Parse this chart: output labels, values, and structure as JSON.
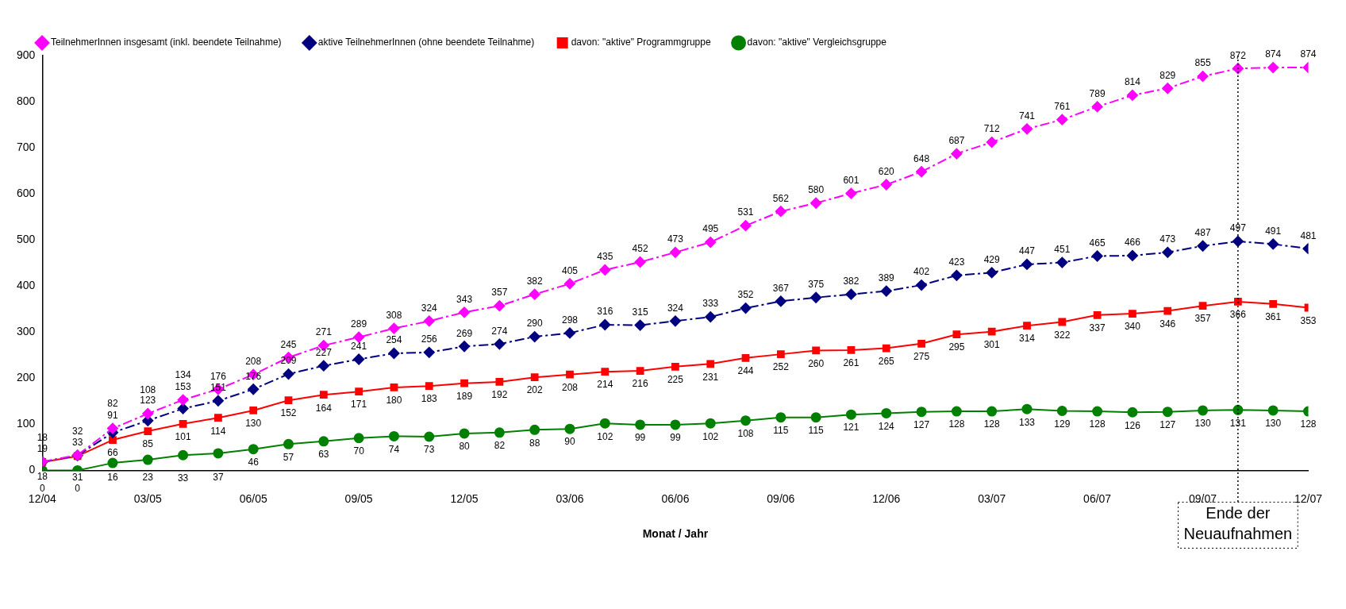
{
  "chart_data": {
    "type": "line",
    "xlabel": "Monat / Jahr",
    "x": [
      "2004-12",
      "2005-01",
      "2005-02",
      "2005-03",
      "2005-04",
      "2005-05",
      "2005-06",
      "2005-07",
      "2005-08",
      "2005-09",
      "2005-10",
      "2005-11",
      "2005-12",
      "2006-01",
      "2006-02",
      "2006-03",
      "2006-04",
      "2006-05",
      "2006-06",
      "2006-07",
      "2006-08",
      "2006-09",
      "2006-10",
      "2006-11",
      "2006-12",
      "2007-01",
      "2007-02",
      "2007-03",
      "2007-04",
      "2007-05",
      "2007-06",
      "2007-07",
      "2007-08",
      "2007-09",
      "2007-10",
      "2007-11",
      "2007-12"
    ],
    "series": [
      {
        "name": "TeilnehmerInnen insgesamt (inkl. beendete Teilnahme)",
        "color": "#ff00ff",
        "marker": "diamond",
        "line_style": "dashed",
        "values": [
          19,
          33,
          91,
          123,
          153,
          176,
          208,
          245,
          271,
          289,
          308,
          324,
          343,
          357,
          382,
          405,
          435,
          452,
          473,
          495,
          531,
          562,
          580,
          601,
          620,
          648,
          687,
          712,
          741,
          761,
          789,
          814,
          829,
          855,
          872,
          874,
          874
        ]
      },
      {
        "name": "aktive TeilnehmerInnen (ohne beendete Teilnahme)",
        "color": "#000080",
        "marker": "diamond",
        "line_style": "dashed",
        "values": [
          18,
          32,
          82,
          108,
          134,
          151,
          176,
          209,
          227,
          241,
          254,
          256,
          269,
          274,
          290,
          298,
          316,
          315,
          324,
          333,
          352,
          367,
          375,
          382,
          389,
          402,
          423,
          429,
          447,
          451,
          465,
          466,
          473,
          487,
          497,
          491,
          481
        ]
      },
      {
        "name": "davon: \"aktive\" Programmgruppe",
        "color": "#ff0000",
        "marker": "square",
        "line_style": "solid",
        "values": [
          18,
          31,
          66,
          85,
          101,
          114,
          130,
          152,
          164,
          171,
          180,
          183,
          189,
          192,
          202,
          208,
          214,
          216,
          225,
          231,
          244,
          252,
          260,
          261,
          265,
          275,
          295,
          301,
          314,
          322,
          337,
          340,
          346,
          357,
          366,
          361,
          353
        ]
      },
      {
        "name": "davon: \"aktive\" Vergleichsgruppe",
        "color": "#008000",
        "marker": "circle",
        "line_style": "solid",
        "values": [
          0,
          0,
          16,
          23,
          33,
          37,
          46,
          57,
          63,
          70,
          74,
          73,
          80,
          82,
          88,
          90,
          102,
          99,
          99,
          102,
          108,
          115,
          115,
          121,
          124,
          127,
          128,
          128,
          133,
          129,
          128,
          126,
          127,
          130,
          131,
          130,
          128
        ]
      }
    ],
    "xlim": [
      "2004-12",
      "2007-12"
    ],
    "xticks": [
      {
        "value": "2004-12",
        "label": "12/04"
      },
      {
        "value": "2005-03",
        "label": "03/05"
      },
      {
        "value": "2005-06",
        "label": "06/05"
      },
      {
        "value": "2005-09",
        "label": "09/05"
      },
      {
        "value": "2005-12",
        "label": "12/05"
      },
      {
        "value": "2006-03",
        "label": "03/06"
      },
      {
        "value": "2006-06",
        "label": "06/06"
      },
      {
        "value": "2006-09",
        "label": "09/06"
      },
      {
        "value": "2006-12",
        "label": "12/06"
      },
      {
        "value": "2007-03",
        "label": "03/07"
      },
      {
        "value": "2007-06",
        "label": "06/07"
      },
      {
        "value": "2007-09",
        "label": "09/07"
      },
      {
        "value": "2007-12",
        "label": "12/07"
      }
    ],
    "ylim": [
      0,
      900
    ],
    "yticks": [
      0,
      100,
      200,
      300,
      400,
      500,
      600,
      700,
      800,
      900
    ],
    "ref_lines": [
      {
        "axis": "x",
        "value": "2007-10",
        "label": "Ende der Neuaufnahmen",
        "color": "#000000",
        "line_style": "dotted"
      }
    ],
    "data_labels": true,
    "grid": false,
    "legend": "top left"
  }
}
